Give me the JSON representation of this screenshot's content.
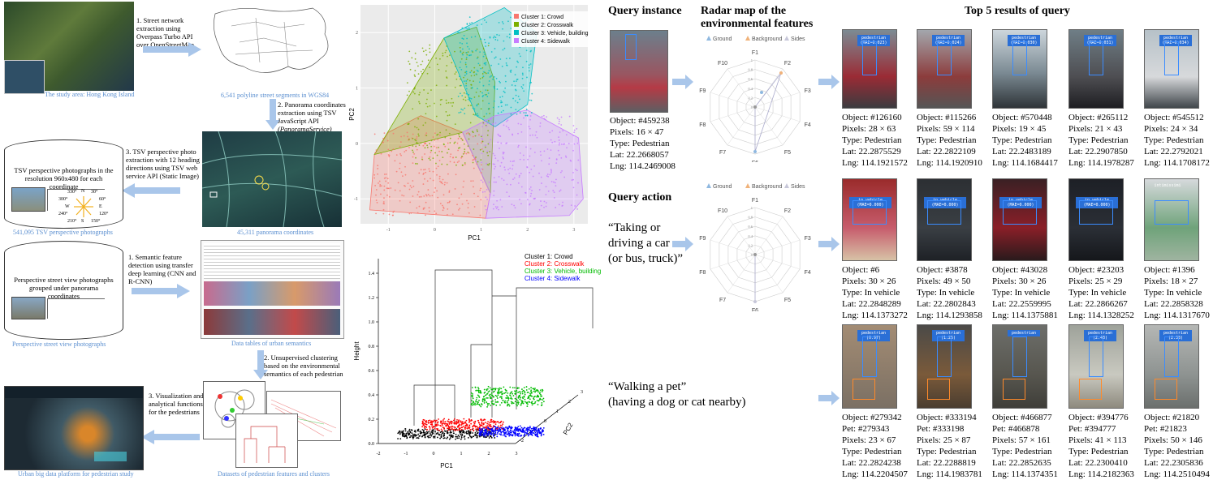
{
  "pipeline": {
    "study_area_label": "The study area: Hong Kong Island",
    "step1_street": "1. Street network extraction using Overpass Turbo API over OpenStreetMap",
    "street_segments_label": "6,541 polyline street segments in WGS84",
    "step2_panorama": [
      "2. Panorama coordinates",
      "extraction using TSV",
      "JavaScript API",
      "(PanoramaService)"
    ],
    "panorama_label": "45,311 panorama coordinates",
    "step3_tsv": [
      "3. TSV perspective photo",
      "extraction with 12 heading",
      "directions using TSV web",
      "service API (Static Image)"
    ],
    "cylinder1_text": "TSV perspective photographs in the resolution 960x480 for each coordinate",
    "cylinder1_label": "541,095 TSV perspective photographs",
    "compass": {
      "n": "N",
      "e": "E",
      "s": "S",
      "w": "W",
      "d330": "330°",
      "d30": "30°",
      "d300": "300°",
      "d60": "60°",
      "d240": "240°",
      "d120": "120°",
      "d210": "210°",
      "d150": "150°"
    },
    "step1_semantic": [
      "1. Semantic feature",
      "detection using transfer",
      "deep learning (CNN and",
      "R-CNN)"
    ],
    "cylinder2_text": "Perspective street view photographs grouped under panorama coordinates",
    "cylinder2_label": "Perspective street view photographs",
    "tables_label": "Data tables of urban semantics",
    "step2_cluster": [
      "2. Unsupervised clustering",
      "based on the environmental",
      "semantics of each pedestrian"
    ],
    "step3_vis": [
      "3. Visualization and",
      "analytical functions",
      "for the pedestrians"
    ],
    "datasets_label": "Datasets of pedestrian features and clusters",
    "platform_label": "Urban big data platform for pedestrian study"
  },
  "chart_data": [
    {
      "type": "scatter",
      "xlabel": "PC1",
      "ylabel": "PC2",
      "x_ticks": [
        "-1",
        "0",
        "1",
        "2",
        "3"
      ],
      "y_ticks": [
        "2",
        "1",
        "0",
        "-1"
      ],
      "legend_position": "top-right",
      "series": [
        {
          "name": "Cluster 1: Crowd",
          "color": "#f8766d"
        },
        {
          "name": "Cluster 2: Crosswalk",
          "color": "#7cae00"
        },
        {
          "name": "Cluster 3: Vehicle, building",
          "color": "#00bfc4"
        },
        {
          "name": "Cluster 4: Sidewalk",
          "color": "#c77cff"
        }
      ]
    },
    {
      "type": "scatter",
      "xlabel": "PC1",
      "ylabel": "Height",
      "zlabel": "PC2",
      "height_ticks": [
        "0.0",
        "0.2",
        "0.4",
        "0.6",
        "0.8",
        "1.0",
        "1.2",
        "1.4"
      ],
      "pc1_ticks": [
        "-2",
        "-1",
        "0",
        "1",
        "2",
        "3"
      ],
      "pc2_ticks": [
        "-2",
        "-1",
        "0",
        "1",
        "2",
        "3"
      ],
      "legend_position": "top-right",
      "series": [
        {
          "name": "Cluster 1: Crowd",
          "color": "#000000"
        },
        {
          "name": "Cluster 2: Crosswalk",
          "color": "#ff0000"
        },
        {
          "name": "Cluster 3: Vehicle, building",
          "color": "#00bb00"
        },
        {
          "name": "Cluster 4: Sidewalk",
          "color": "#0000ff"
        }
      ]
    }
  ],
  "query": {
    "query_instance_title": "Query instance",
    "radar_title": [
      "Radar map of the",
      "environmental features"
    ],
    "top5_title": "Top 5 results of query",
    "instance_info": [
      "Object: #459238",
      "Pixels: 16 × 47",
      "Type: Pedestrian",
      "Lat: 22.2668057",
      "Lng: 114.2469008"
    ],
    "query_action_title": "Query action",
    "action1_text": [
      "“Taking or",
      "driving a car",
      "(or bus, truck)”"
    ],
    "action2_text": [
      "“Walking a pet”",
      "(having a dog or cat nearby)"
    ],
    "radar_legend": [
      "Ground",
      "Background",
      "Sides"
    ],
    "radar_axes": [
      "F1",
      "F2",
      "F3",
      "F4",
      "F5",
      "F6",
      "F7",
      "F8",
      "F9",
      "F10"
    ],
    "radar_rings": [
      "0",
      "0.2",
      "0.4",
      "0.6",
      "0.8",
      "1"
    ],
    "rows": [
      {
        "results": [
          {
            "tag": "pedestrian (MAE=0.023)",
            "info": [
              "Object: #126160",
              "Pixels: 28 × 63",
              "Type: Pedestrian",
              "Lat: 22.2875529",
              "Lng: 114.1921572"
            ]
          },
          {
            "tag": "pedestrian (MAE=0.024)",
            "info": [
              "Object: #115266",
              "Pixels: 59 × 114",
              "Type: Pedestrian",
              "Lat: 22.2822109",
              "Lng: 114.1920910"
            ]
          },
          {
            "tag": "pedestrian (MAE=0.030)",
            "info": [
              "Object: #570448",
              "Pixels: 19 × 45",
              "Type: Pedestrian",
              "Lat: 22.2483189",
              "Lng: 114.1684417"
            ]
          },
          {
            "tag": "pedestrian (MAE=0.031)",
            "info": [
              "Object: #265112",
              "Pixels: 21 × 43",
              "Type: Pedestrian",
              "Lat: 22.2907850",
              "Lng: 114.1978287"
            ]
          },
          {
            "tag": "pedestrian (MAE=0.034)",
            "info": [
              "Object: #545512",
              "Pixels: 24 × 34",
              "Type: Pedestrian",
              "Lat: 22.2792021",
              "Lng: 114.1708172"
            ]
          }
        ]
      },
      {
        "results": [
          {
            "tag": "in vehicle (MAE=0.000)",
            "info": [
              "Object: #6",
              "Pixels: 30 × 26",
              "Type: In vehicle",
              "Lat: 22.2848289",
              "Lng: 114.1373272"
            ]
          },
          {
            "tag": "in vehicle (MAE=0.000)",
            "info": [
              "Object: #3878",
              "Pixels: 49 × 50",
              "Type: In vehicle",
              "Lat: 22.2802843",
              "Lng: 114.1293858"
            ]
          },
          {
            "tag": "in vehicle (MAE=0.000)",
            "info": [
              "Object: #43028",
              "Pixels: 30 × 26",
              "Type: In vehicle",
              "Lat: 22.2559995",
              "Lng: 114.1375881"
            ]
          },
          {
            "tag": "in vehicle (MAE=0.000)",
            "info": [
              "Object: #23203",
              "Pixels: 25 × 29",
              "Type: In vehicle",
              "Lat: 22.2866267",
              "Lng: 114.1328252"
            ]
          },
          {
            "tag": "intimissimi",
            "info": [
              "Object: #1396",
              "Pixels: 18 × 27",
              "Type: In vehicle",
              "Lat: 22.2858328",
              "Lng: 114.1317670"
            ]
          }
        ]
      },
      {
        "results": [
          {
            "tag": "pedestrian (0.97)",
            "info": [
              "Object: #279342",
              "Pet: #279343",
              "Pixels: 23 × 67",
              "Type: Pedestrian",
              "Lat: 22.2824238",
              "Lng: 114.2204507"
            ]
          },
          {
            "tag": "pedestrian (1.25)",
            "info": [
              "Object: #333194",
              "Pet: #333198",
              "Pixels: 25 × 87",
              "Type: Pedestrian",
              "Lat: 22.2288819",
              "Lng: 114.1983781"
            ]
          },
          {
            "tag": "pedestrian",
            "info": [
              "Object: #466877",
              "Pet: #466878",
              "Pixels: 57 × 161",
              "Type: Pedestrian",
              "Lat: 22.2852635",
              "Lng: 114.1374351"
            ]
          },
          {
            "tag": "pedestrian (2.43)",
            "info": [
              "Object: #394776",
              "Pet: #394777",
              "Pixels: 41 × 113",
              "Type: Pedestrian",
              "Lat: 22.2300410",
              "Lng: 114.2182363"
            ]
          },
          {
            "tag": "pedestrian (2.38)",
            "info": [
              "Object: #21820",
              "Pet: #21823",
              "Pixels: 50 × 146",
              "Type: Pedestrian",
              "Lat: 22.2305836",
              "Lng: 114.2510494"
            ]
          }
        ]
      }
    ]
  }
}
